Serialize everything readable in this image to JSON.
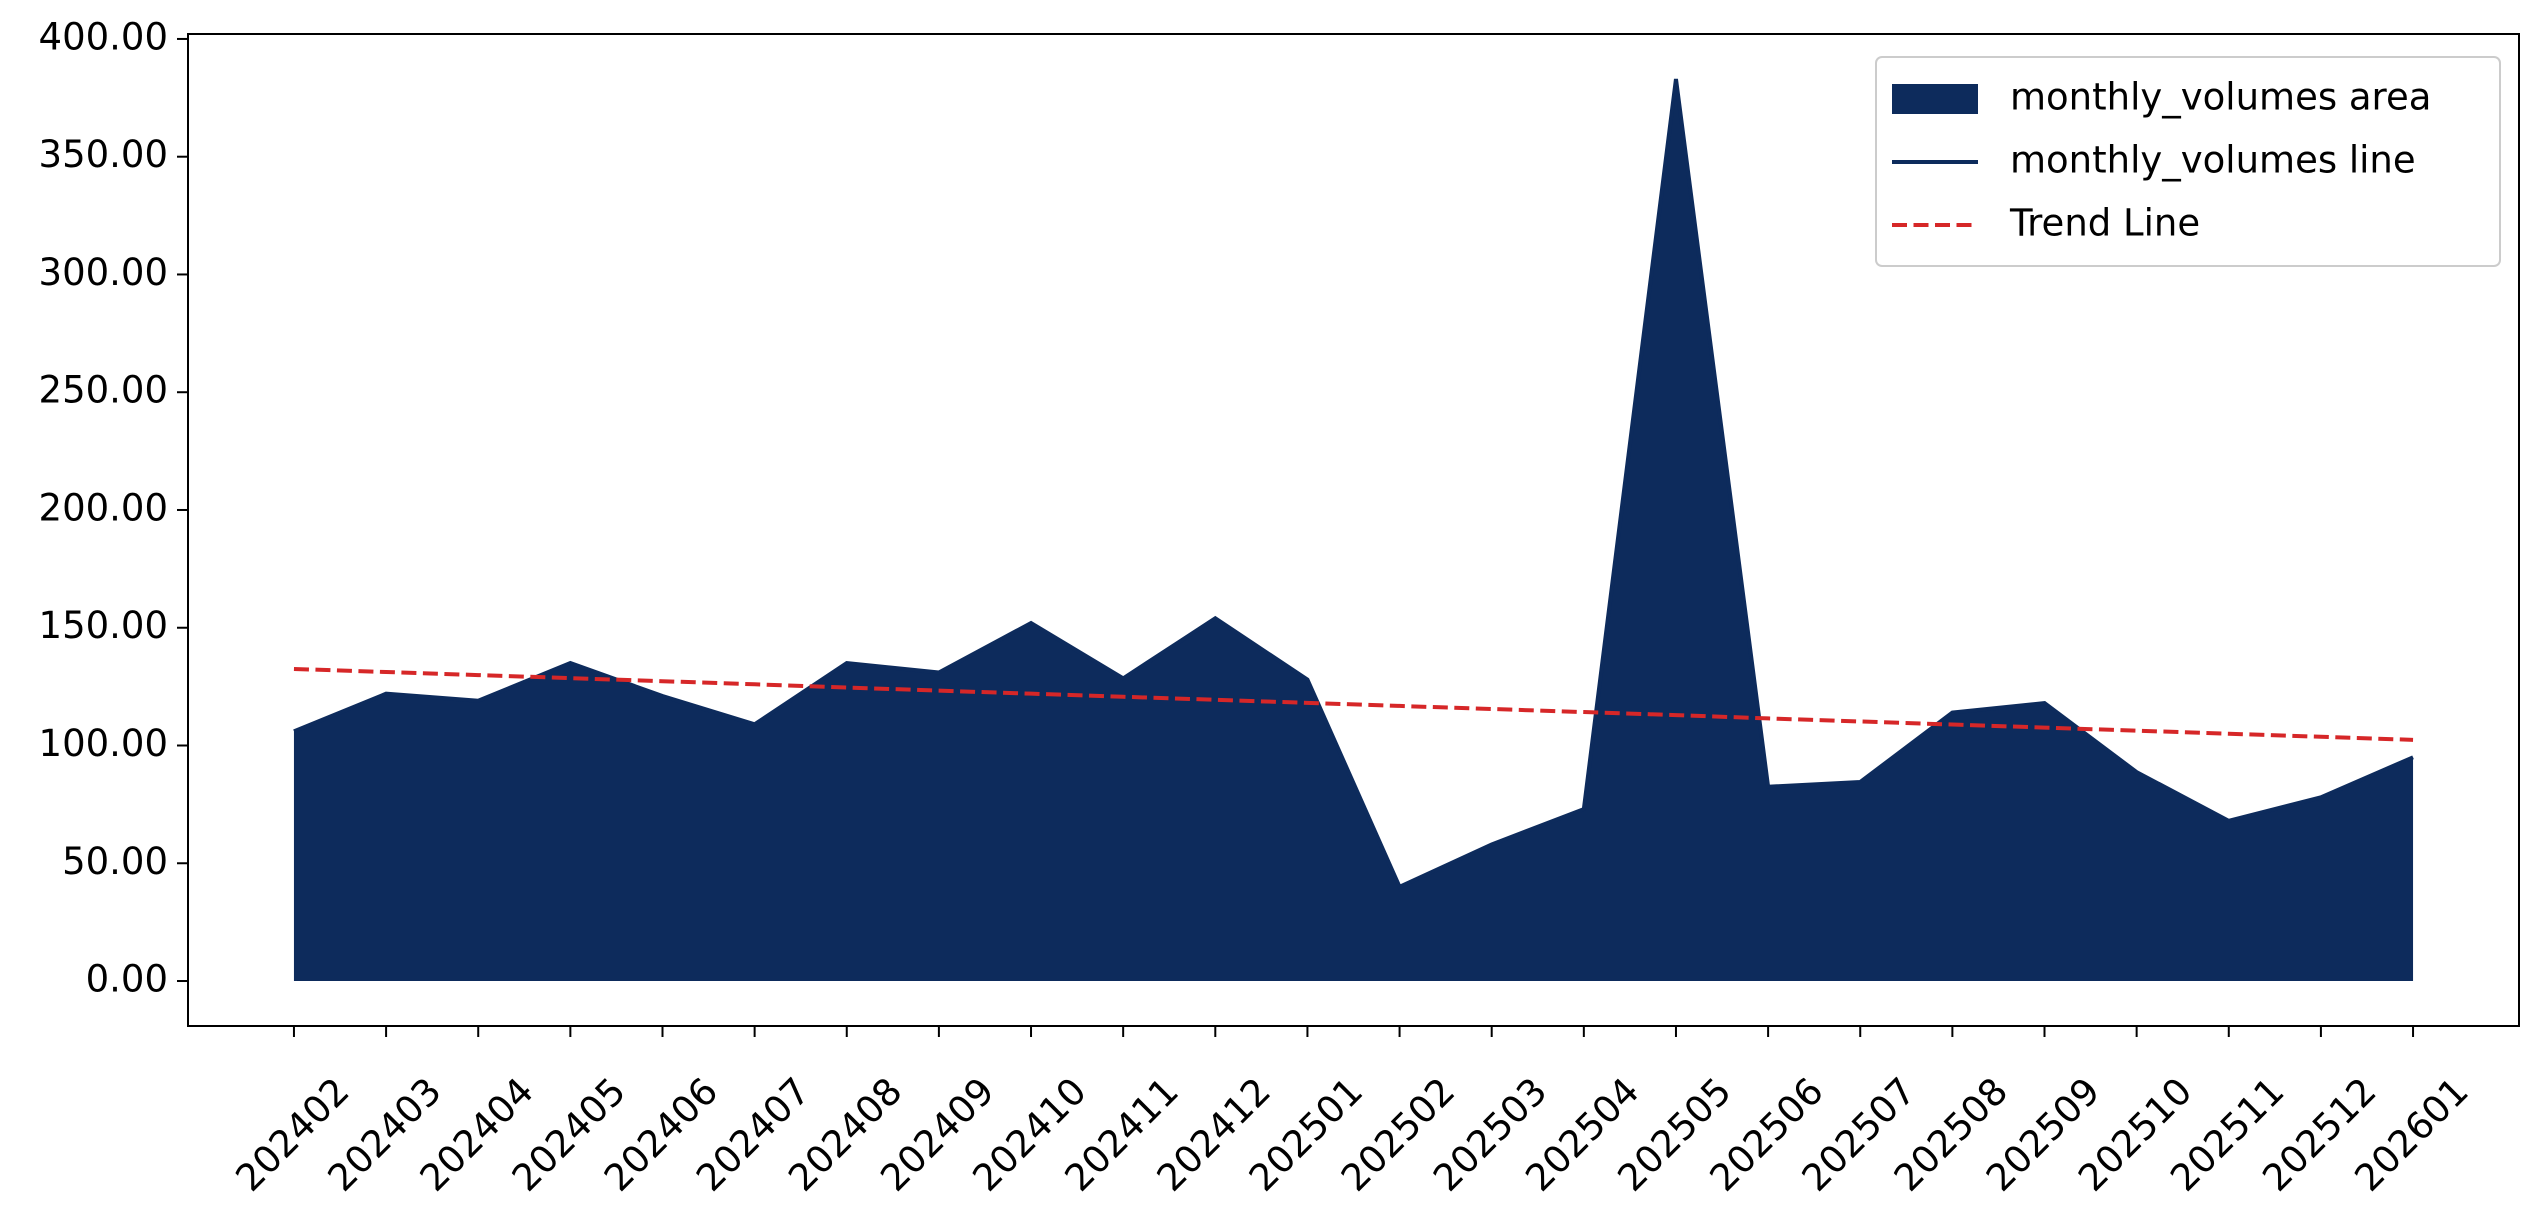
{
  "chart_data": {
    "type": "area",
    "categories": [
      "202402",
      "202403",
      "202404",
      "202405",
      "202406",
      "202407",
      "202408",
      "202409",
      "202410",
      "202411",
      "202412",
      "202501",
      "202502",
      "202503",
      "202504",
      "202505",
      "202506",
      "202507",
      "202508",
      "202509",
      "202510",
      "202511",
      "202512",
      "202601"
    ],
    "series": [
      {
        "name": "monthly_volumes area",
        "color": "#0d2b5c",
        "style": "area",
        "values": [
          106,
          122,
          119,
          135,
          121,
          109,
          135,
          131,
          152,
          128.5,
          154,
          128,
          40,
          58,
          73,
          383,
          82.5,
          84.5,
          114,
          118,
          88.7,
          68,
          78,
          95
        ]
      },
      {
        "name": "monthly_volumes line",
        "color": "#0d2b5c",
        "style": "solid",
        "values": [
          106,
          122,
          119,
          135,
          121,
          109,
          135,
          131,
          152,
          128.5,
          154,
          128,
          40,
          58,
          73,
          383,
          82.5,
          84.5,
          114,
          118,
          88.7,
          68,
          78,
          95
        ]
      },
      {
        "name": "Trend Line",
        "color": "#d62728",
        "style": "dashed",
        "values": [
          132.5,
          131.2,
          129.9,
          128.6,
          127.3,
          126.0,
          124.6,
          123.3,
          122.0,
          120.7,
          119.4,
          118.1,
          116.8,
          115.5,
          114.2,
          112.9,
          111.5,
          110.2,
          108.9,
          107.6,
          106.3,
          105.0,
          103.7,
          102.4
        ]
      }
    ],
    "ylim": [
      -19.1,
      402.1
    ],
    "yticks": [
      {
        "value": 0,
        "label": "0.00"
      },
      {
        "value": 50,
        "label": "50.00"
      },
      {
        "value": 100,
        "label": "100.00"
      },
      {
        "value": 150,
        "label": "150.00"
      },
      {
        "value": 200,
        "label": "200.00"
      },
      {
        "value": 250,
        "label": "250.00"
      },
      {
        "value": 300,
        "label": "300.00"
      },
      {
        "value": 350,
        "label": "350.00"
      },
      {
        "value": 400,
        "label": "400.00"
      }
    ],
    "legend": "upper right",
    "grid": false
  }
}
